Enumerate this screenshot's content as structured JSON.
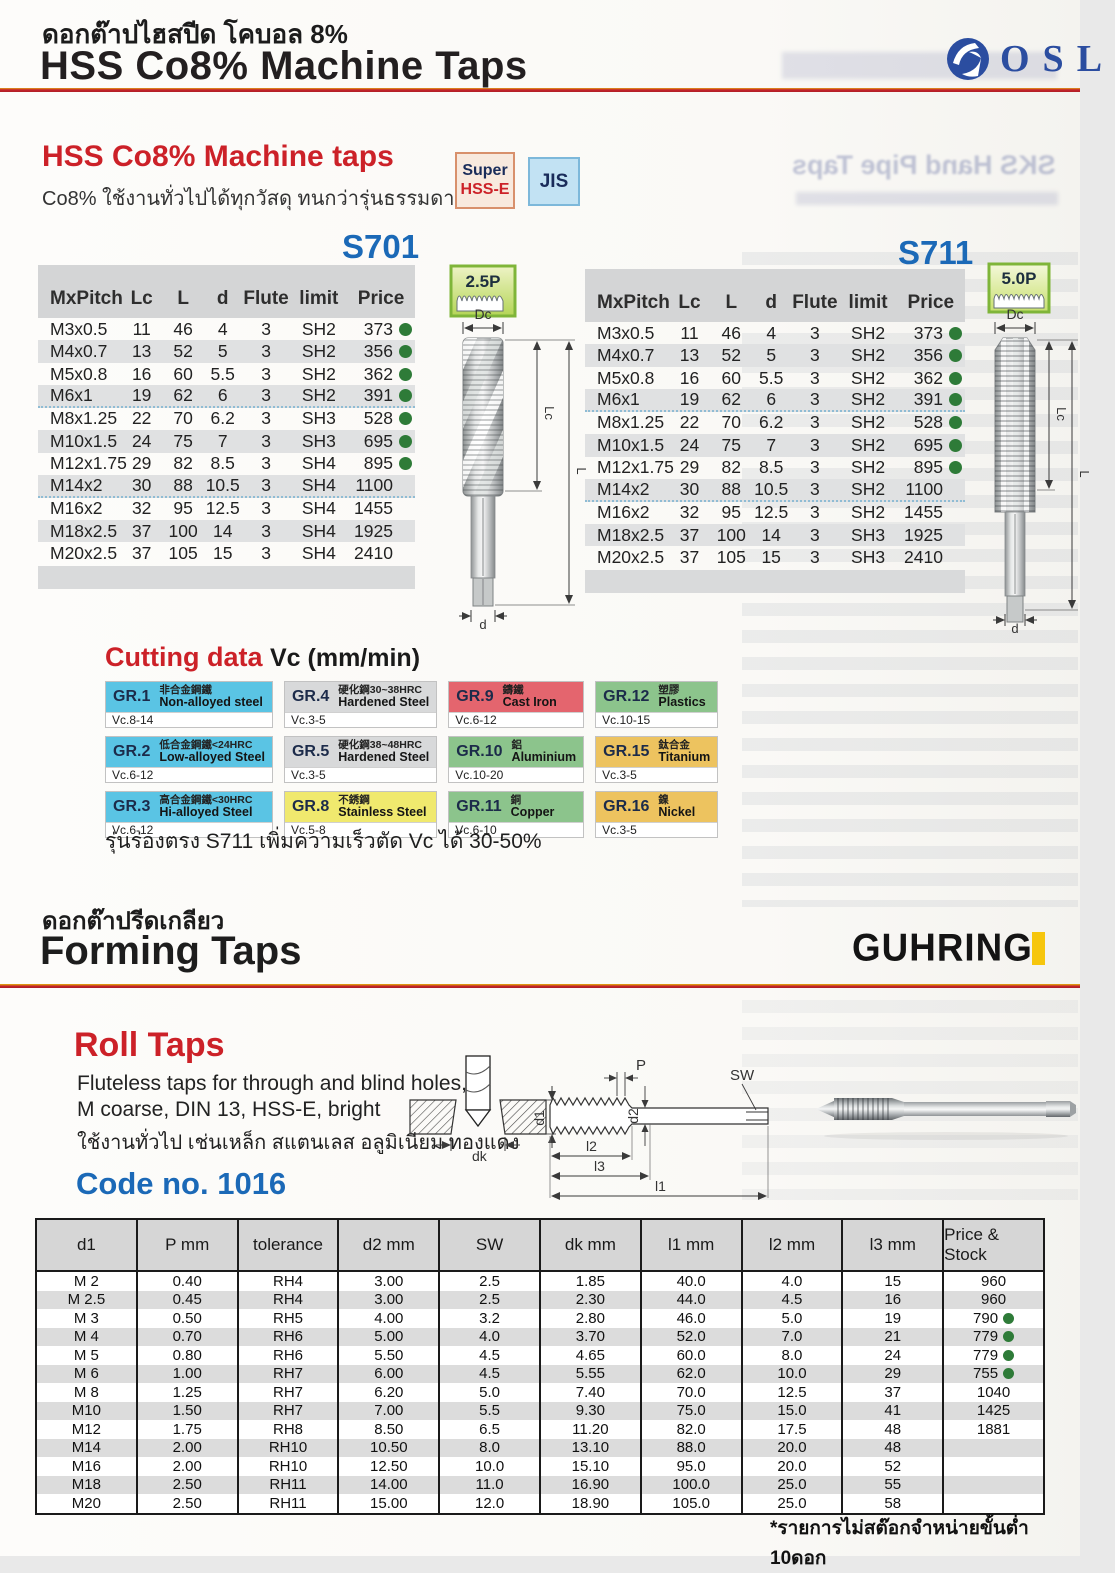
{
  "header": {
    "title_thai": "ดอกต๊าปไฮสปีด โคบอล 8%",
    "title": "HSS Co8% Machine Taps",
    "brand": "OSL"
  },
  "intro": {
    "heading": "HSS Co8% Machine taps",
    "subtitle_thai": "Co8% ใช้งานทั่วไปได้ทุกวัสดุ ทนกว่ารุ่นธรรมดา",
    "badge_super_line1": "Super",
    "badge_super_line2": "HSS-E",
    "badge_jis": "JIS"
  },
  "fig_labels": {
    "dc": "Dc",
    "lc": "Lc",
    "l": "L",
    "d": "d"
  },
  "tap_tables": [
    {
      "model": "S701",
      "profile_badge": "2.5P",
      "headers": [
        "MxPitch",
        "Lc",
        "L",
        "d",
        "Flute",
        "limit",
        "Price"
      ],
      "rows": [
        {
          "c": [
            "M3x0.5",
            "11",
            "46",
            "4",
            "3",
            "SH2",
            "373"
          ],
          "dot": true
        },
        {
          "c": [
            "M4x0.7",
            "13",
            "52",
            "5",
            "3",
            "SH2",
            "356"
          ],
          "dot": true
        },
        {
          "c": [
            "M5x0.8",
            "16",
            "60",
            "5.5",
            "3",
            "SH2",
            "362"
          ],
          "dot": true
        },
        {
          "c": [
            "M6x1",
            "19",
            "62",
            "6",
            "3",
            "SH2",
            "391"
          ],
          "dot": true
        },
        {
          "c": [
            "M8x1.25",
            "22",
            "70",
            "6.2",
            "3",
            "SH3",
            "528"
          ],
          "dot": true
        },
        {
          "c": [
            "M10x1.5",
            "24",
            "75",
            "7",
            "3",
            "SH3",
            "695"
          ],
          "dot": true
        },
        {
          "c": [
            "M12x1.75",
            "29",
            "82",
            "8.5",
            "3",
            "SH4",
            "895"
          ],
          "dot": true
        },
        {
          "c": [
            "M14x2",
            "30",
            "88",
            "10.5",
            "3",
            "SH4",
            "1100"
          ],
          "dot": false
        },
        {
          "c": [
            "M16x2",
            "32",
            "95",
            "12.5",
            "3",
            "SH4",
            "1455"
          ],
          "dot": false
        },
        {
          "c": [
            "M18x2.5",
            "37",
            "100",
            "14",
            "3",
            "SH4",
            "1925"
          ],
          "dot": false
        },
        {
          "c": [
            "M20x2.5",
            "37",
            "105",
            "15",
            "3",
            "SH4",
            "2410"
          ],
          "dot": false
        }
      ]
    },
    {
      "model": "S711",
      "profile_badge": "5.0P",
      "headers": [
        "MxPitch",
        "Lc",
        "L",
        "d",
        "Flute",
        "limit",
        "Price"
      ],
      "rows": [
        {
          "c": [
            "M3x0.5",
            "11",
            "46",
            "4",
            "3",
            "SH2",
            "373"
          ],
          "dot": true
        },
        {
          "c": [
            "M4x0.7",
            "13",
            "52",
            "5",
            "3",
            "SH2",
            "356"
          ],
          "dot": true
        },
        {
          "c": [
            "M5x0.8",
            "16",
            "60",
            "5.5",
            "3",
            "SH2",
            "362"
          ],
          "dot": true
        },
        {
          "c": [
            "M6x1",
            "19",
            "62",
            "6",
            "3",
            "SH2",
            "391"
          ],
          "dot": true
        },
        {
          "c": [
            "M8x1.25",
            "22",
            "70",
            "6.2",
            "3",
            "SH2",
            "528"
          ],
          "dot": true
        },
        {
          "c": [
            "M10x1.5",
            "24",
            "75",
            "7",
            "3",
            "SH2",
            "695"
          ],
          "dot": true
        },
        {
          "c": [
            "M12x1.75",
            "29",
            "82",
            "8.5",
            "3",
            "SH2",
            "895"
          ],
          "dot": true
        },
        {
          "c": [
            "M14x2",
            "30",
            "88",
            "10.5",
            "3",
            "SH2",
            "1100"
          ],
          "dot": false
        },
        {
          "c": [
            "M16x2",
            "32",
            "95",
            "12.5",
            "3",
            "SH2",
            "1455"
          ],
          "dot": false
        },
        {
          "c": [
            "M18x2.5",
            "37",
            "100",
            "14",
            "3",
            "SH3",
            "1925"
          ],
          "dot": false
        },
        {
          "c": [
            "M20x2.5",
            "37",
            "105",
            "15",
            "3",
            "SH3",
            "2410"
          ],
          "dot": false
        }
      ]
    }
  ],
  "cutting": {
    "title": "Cutting data",
    "unit": "Vc (mm/min)",
    "note_thai": "รุ่นร่องตรง S711 เพิ่มความเร็วตัด Vc ได้ 30-50%",
    "cells": [
      {
        "gr": "GR.1",
        "cn": "非合金鋼鐵",
        "en": "Non-alloyed steel",
        "vc": "Vc.8-14",
        "color": "#5ac4e4"
      },
      {
        "gr": "GR.4",
        "cn": "硬化鋼30~38HRC",
        "en": "Hardened Steel",
        "vc": "Vc.3-5",
        "color": "#d8d9da"
      },
      {
        "gr": "GR.9",
        "cn": "鑄鐵",
        "en": "Cast Iron",
        "vc": "Vc.6-12",
        "color": "#e4656e"
      },
      {
        "gr": "GR.12",
        "cn": "塑膠",
        "en": "Plastics",
        "vc": "Vc.10-15",
        "color": "#8cc48c"
      },
      {
        "gr": "GR.2",
        "cn": "低合金鋼鐵<24HRC",
        "en": "Low-alloyed Steel",
        "vc": "Vc.6-12",
        "color": "#5ac4e4"
      },
      {
        "gr": "GR.5",
        "cn": "硬化鋼38~48HRC",
        "en": "Hardened Steel",
        "vc": "Vc.3-5",
        "color": "#d8d9da"
      },
      {
        "gr": "GR.10",
        "cn": "鋁",
        "en": "Aluminium",
        "vc": "Vc.10-20",
        "color": "#8cc48c"
      },
      {
        "gr": "GR.15",
        "cn": "鈦合金",
        "en": "Titanium",
        "vc": "Vc.3-5",
        "color": "#edc35f"
      },
      {
        "gr": "GR.3",
        "cn": "高合金鋼鐵<30HRC",
        "en": "Hi-alloyed Steel",
        "vc": "Vc.6-12",
        "color": "#5ac4e4"
      },
      {
        "gr": "GR.8",
        "cn": "不銹鋼",
        "en": "Stainless Steel",
        "vc": "Vc.5-8",
        "color": "#f0e96e"
      },
      {
        "gr": "GR.11",
        "cn": "銅",
        "en": "Copper",
        "vc": "Vc.6-10",
        "color": "#8cc48c"
      },
      {
        "gr": "GR.16",
        "cn": "鎳",
        "en": "Nickel",
        "vc": "Vc.3-5",
        "color": "#edc35f"
      }
    ]
  },
  "forming": {
    "title_thai": "ดอกต๊าปรีดเกลียว",
    "title": "Forming Taps",
    "brand": "GUHRING"
  },
  "roll": {
    "title": "Roll Taps",
    "desc_line1": "Fluteless taps for through and blind holes,",
    "desc_line2": "M coarse, DIN 13, HSS-E, bright",
    "desc_thai": "ใช้งานทั่วไป เช่นเหล็ก สแตนเลส อลูมิเนียม ทองแดง",
    "code": "Code no. 1016"
  },
  "drawing_labels": {
    "p": "P",
    "sw": "SW",
    "d2": "d2",
    "l1": "l1",
    "l2": "l2",
    "l3": "l3",
    "dk": "dk",
    "d1": "d1"
  },
  "roll_table": {
    "headers": [
      "d1",
      "P mm",
      "tolerance",
      "d2 mm",
      "SW",
      "dk mm",
      "l1 mm",
      "l2 mm",
      "l3 mm",
      "Price & Stock"
    ],
    "rows": [
      {
        "c": [
          "M 2",
          "0.40",
          "RH4",
          "3.00",
          "2.5",
          "1.85",
          "40.0",
          "4.0",
          "15",
          "960"
        ],
        "dot": false
      },
      {
        "c": [
          "M 2.5",
          "0.45",
          "RH4",
          "3.00",
          "2.5",
          "2.30",
          "44.0",
          "4.5",
          "16",
          "960"
        ],
        "dot": false
      },
      {
        "c": [
          "M 3",
          "0.50",
          "RH5",
          "4.00",
          "3.2",
          "2.80",
          "46.0",
          "5.0",
          "19",
          "790"
        ],
        "dot": true
      },
      {
        "c": [
          "M 4",
          "0.70",
          "RH6",
          "5.00",
          "4.0",
          "3.70",
          "52.0",
          "7.0",
          "21",
          "779"
        ],
        "dot": true
      },
      {
        "c": [
          "M 5",
          "0.80",
          "RH6",
          "5.50",
          "4.5",
          "4.65",
          "60.0",
          "8.0",
          "24",
          "779"
        ],
        "dot": true
      },
      {
        "c": [
          "M 6",
          "1.00",
          "RH7",
          "6.00",
          "4.5",
          "5.55",
          "62.0",
          "10.0",
          "29",
          "755"
        ],
        "dot": true
      },
      {
        "c": [
          "M 8",
          "1.25",
          "RH7",
          "6.20",
          "5.0",
          "7.40",
          "70.0",
          "12.5",
          "37",
          "1040"
        ],
        "dot": false
      },
      {
        "c": [
          "M10",
          "1.50",
          "RH7",
          "7.00",
          "5.5",
          "9.30",
          "75.0",
          "15.0",
          "41",
          "1425"
        ],
        "dot": false
      },
      {
        "c": [
          "M12",
          "1.75",
          "RH8",
          "8.50",
          "6.5",
          "11.20",
          "82.0",
          "17.5",
          "48",
          "1881"
        ],
        "dot": false
      },
      {
        "c": [
          "M14",
          "2.00",
          "RH10",
          "10.50",
          "8.0",
          "13.10",
          "88.0",
          "20.0",
          "48",
          ""
        ],
        "dot": false
      },
      {
        "c": [
          "M16",
          "2.00",
          "RH10",
          "12.50",
          "10.0",
          "15.10",
          "95.0",
          "20.0",
          "52",
          ""
        ],
        "dot": false
      },
      {
        "c": [
          "M18",
          "2.50",
          "RH11",
          "14.00",
          "11.0",
          "16.90",
          "100.0",
          "25.0",
          "55",
          ""
        ],
        "dot": false
      },
      {
        "c": [
          "M20",
          "2.50",
          "RH11",
          "15.00",
          "12.0",
          "18.90",
          "105.0",
          "25.0",
          "58",
          ""
        ],
        "dot": false
      }
    ]
  },
  "footnote_thai": "*รายการไม่สต๊อกจำหน่ายขั้นต่ำ 10ดอก",
  "ghost": {
    "showthrough_text": "SKS Hand Pipe Taps"
  }
}
